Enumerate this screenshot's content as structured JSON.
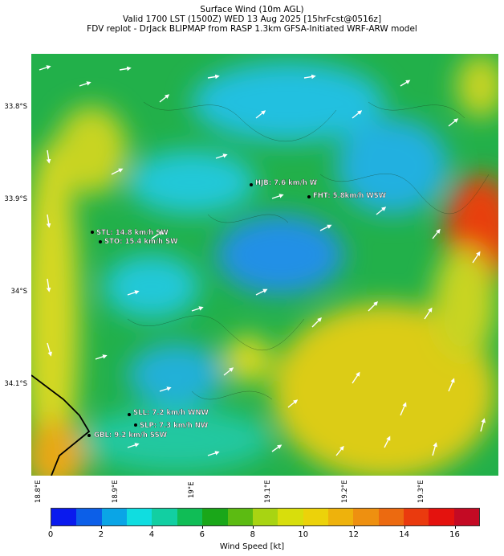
{
  "titles": {
    "line1": "Surface Wind (10m AGL)",
    "line2": "Valid 1700 LST (1500Z) WED 13 Aug 2025 [15hrFcst@0516z]",
    "line3": "FDV replot - DrJack BLIPMAP from RASP 1.3km GFSA-Initiated WRF-ARW model"
  },
  "lat_labels": [
    "33.8°S",
    "33.9°S",
    "34°S",
    "34.1°S"
  ],
  "lon_labels": [
    "18.8°E",
    "18.9°E",
    "19°E",
    "19.1°E",
    "19.2°E",
    "19.3°E"
  ],
  "stations": [
    {
      "label": "HJB: 7.6 km/h W",
      "code": "hjb"
    },
    {
      "label": "FHT: 5.8km/h WSW",
      "code": "fht"
    },
    {
      "label": "STL: 14.8 km/h SW",
      "code": "stl"
    },
    {
      "label": "STO: 15.4 km/h SW",
      "code": "sto"
    },
    {
      "label": "SLL: 7.2 km/h WNW",
      "code": "sll"
    },
    {
      "label": "SLP: 7.3 km/h NW",
      "code": "slp"
    },
    {
      "label": "GBL: 9.2 km/h SSW",
      "code": "gbl"
    }
  ],
  "colorbar": {
    "label": "Wind Speed [kt]",
    "ticks": [
      "0",
      "2",
      "4",
      "6",
      "8",
      "10",
      "12",
      "14",
      "16"
    ],
    "colors": [
      "#0a1aee",
      "#0c5fe8",
      "#0aa5e6",
      "#10dde0",
      "#12cfa2",
      "#10bd56",
      "#1aa719",
      "#5cbb12",
      "#a8d412",
      "#d8de0c",
      "#ecd20a",
      "#eeb20c",
      "#ee9010",
      "#ec6a10",
      "#ea3a0e",
      "#e4120e",
      "#c40a24"
    ]
  }
}
